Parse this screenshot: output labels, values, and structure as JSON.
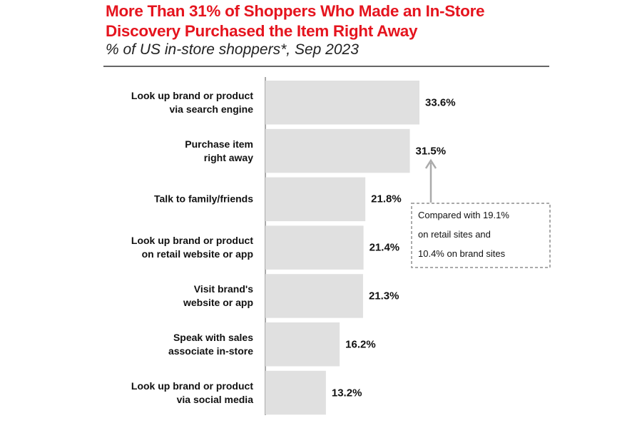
{
  "chart_data": {
    "type": "bar",
    "orientation": "horizontal",
    "title": "More Than 31% of Shoppers Who Made an In-Store\nDiscovery Purchased the Item Right Away",
    "subtitle": "% of US in-store shoppers*, Sep 2023",
    "categories": [
      "Look up brand or product\nvia search engine",
      "Purchase item\nright away",
      "Talk to family/friends",
      "Look up brand or product\non retail website or app",
      "Visit brand's\nwebsite or app",
      "Speak with sales\nassociate in-store",
      "Look up brand or product\nvia social media"
    ],
    "values": [
      33.6,
      31.5,
      21.8,
      21.4,
      21.3,
      16.2,
      13.2
    ],
    "value_labels": [
      "33.6%",
      "31.5%",
      "21.8%",
      "21.4%",
      "21.3%",
      "16.2%",
      "13.2%"
    ],
    "color": "#e0e0e0",
    "annotation": "Compared with 19.1%\non retail sites and\n10.4% on brand sites"
  }
}
